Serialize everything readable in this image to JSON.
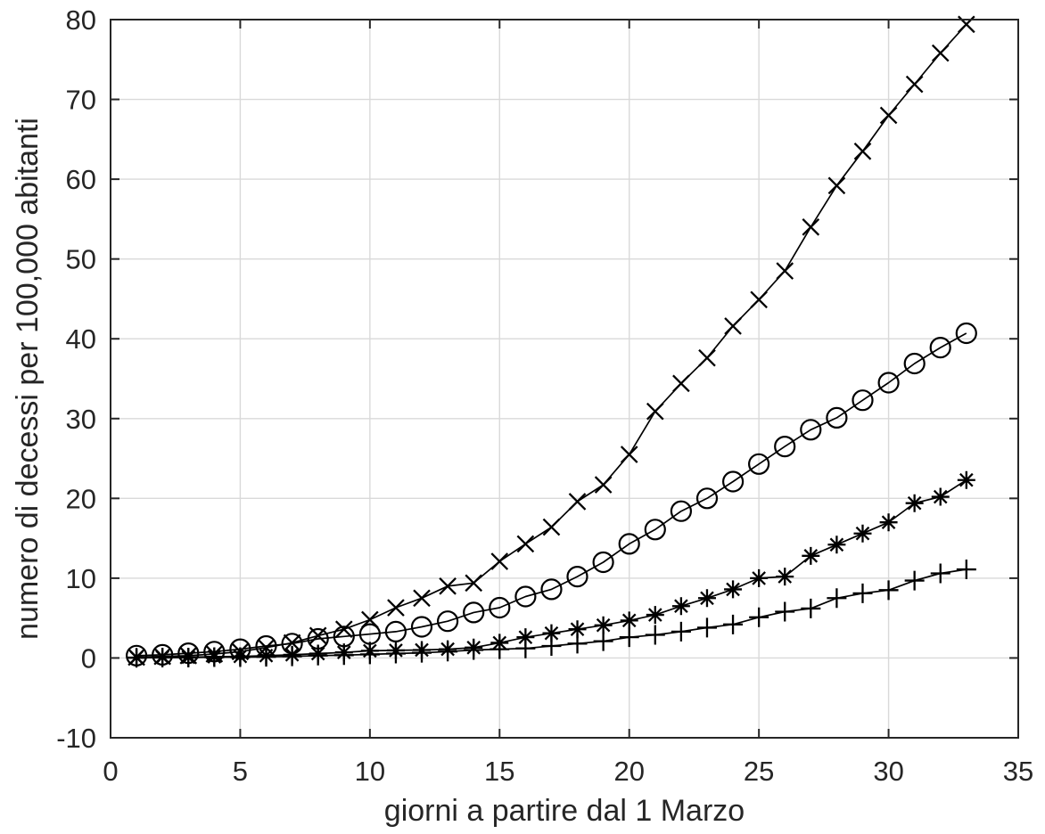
{
  "figure": {
    "background": "#ffffff",
    "axis_color": "#262626",
    "grid_color": "#d9d9d9",
    "series_color": "#000000",
    "text_color": "#262626"
  },
  "chart_data": {
    "type": "line",
    "title": "",
    "xlabel": "giorni a partire dal 1 Marzo",
    "ylabel": "numero di decessi per 100,000 abitanti",
    "xlim": [
      0,
      35
    ],
    "ylim": [
      -10,
      80
    ],
    "x_ticks": [
      0,
      5,
      10,
      15,
      20,
      25,
      30,
      35
    ],
    "y_ticks": [
      -10,
      0,
      10,
      20,
      30,
      40,
      50,
      60,
      70,
      80
    ],
    "grid": true,
    "legend_position": "none",
    "box": true,
    "x": [
      1,
      2,
      3,
      4,
      5,
      6,
      7,
      8,
      9,
      10,
      11,
      12,
      13,
      14,
      15,
      16,
      17,
      18,
      19,
      20,
      21,
      22,
      23,
      24,
      25,
      26,
      27,
      28,
      29,
      30,
      31,
      32,
      33
    ],
    "series": [
      {
        "name": "marker-x-series",
        "marker": "x",
        "line_style": "solid",
        "values": [
          0.1,
          0.2,
          0.3,
          0.5,
          0.8,
          1.3,
          1.9,
          2.8,
          3.6,
          4.8,
          6.3,
          7.5,
          9.0,
          9.4,
          12.1,
          14.3,
          16.4,
          19.6,
          21.7,
          25.5,
          30.9,
          34.4,
          37.6,
          41.6,
          44.9,
          48.5,
          54.0,
          59.2,
          63.5,
          68.0,
          71.9,
          75.8,
          79.4
        ]
      },
      {
        "name": "marker-circle-series",
        "marker": "o",
        "line_style": "solid",
        "values": [
          0.3,
          0.4,
          0.6,
          0.8,
          1.1,
          1.5,
          1.8,
          2.4,
          2.7,
          3.0,
          3.3,
          3.9,
          4.6,
          5.7,
          6.3,
          7.7,
          8.6,
          10.2,
          12.0,
          14.3,
          16.1,
          18.4,
          20.0,
          22.1,
          24.3,
          26.5,
          28.6,
          30.1,
          32.3,
          34.5,
          36.9,
          38.9,
          40.7
        ]
      },
      {
        "name": "marker-asterisk-series",
        "marker": "*",
        "line_style": "solid",
        "values": [
          0.05,
          0.1,
          0.1,
          0.15,
          0.2,
          0.3,
          0.4,
          0.55,
          0.7,
          0.9,
          0.95,
          1.0,
          1.1,
          1.3,
          1.9,
          2.6,
          3.1,
          3.6,
          4.1,
          4.7,
          5.4,
          6.5,
          7.5,
          8.6,
          10.0,
          10.2,
          12.8,
          14.2,
          15.6,
          17.0,
          19.4,
          20.2,
          22.3
        ]
      },
      {
        "name": "marker-plus-series",
        "marker": "+",
        "line_style": "solid",
        "values": [
          0.02,
          0.05,
          0.05,
          0.1,
          0.1,
          0.15,
          0.2,
          0.3,
          0.35,
          0.45,
          0.55,
          0.65,
          0.8,
          1.0,
          1.1,
          1.2,
          1.5,
          1.8,
          2.1,
          2.6,
          2.9,
          3.3,
          3.8,
          4.2,
          5.1,
          5.8,
          6.2,
          7.5,
          8.1,
          8.5,
          9.7,
          10.6,
          11.1
        ]
      }
    ]
  }
}
